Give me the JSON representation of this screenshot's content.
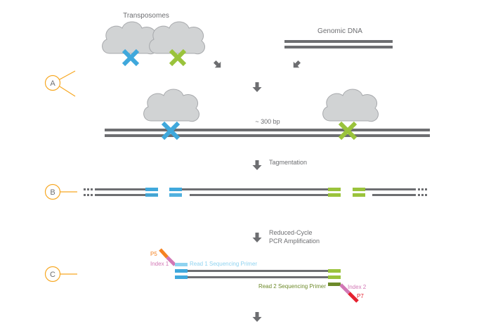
{
  "labels": {
    "transposomes": "Transposomes",
    "genomic_dna": "Genomic DNA",
    "bp": "~ 300 bp",
    "tagmentation": "Tagmentation",
    "reduced_cycle_line1": "Reduced-Cycle",
    "reduced_cycle_line2": "PCR Amplification",
    "p5": "P5",
    "index1": "Index 1",
    "read1": "Read 1 Sequencing Primer",
    "read2": "Read 2 Sequencing Primer",
    "index2": "Index 2",
    "p7": "P7"
  },
  "steps": {
    "a": "A",
    "b": "B",
    "c": "C"
  },
  "colors": {
    "dna": "#6d6e71",
    "blue": "#3fa8dc",
    "green": "#9ac33c",
    "cloud_fill": "#d1d3d4",
    "cloud_stroke": "#a7a9ac",
    "step_orange": "#f7a823",
    "p5": "#f58220",
    "index_pink": "#d277b5",
    "read1_light": "#8fd3f0",
    "read2_olive": "#6d8a2a",
    "p7": "#e5202e"
  },
  "icons": {
    "arrow": "down-arrow-icon",
    "transposome": "transposome-icon"
  }
}
